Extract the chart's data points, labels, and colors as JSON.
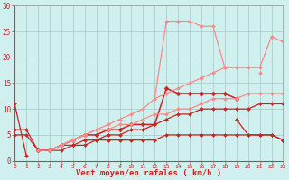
{
  "xlabel": "Vent moyen/en rafales ( km/h )",
  "background_color": "#cff0ee",
  "grid_color": "#aacfcc",
  "x": [
    0,
    1,
    2,
    3,
    4,
    5,
    6,
    7,
    8,
    9,
    10,
    11,
    12,
    13,
    14,
    15,
    16,
    17,
    18,
    19,
    20,
    21,
    22,
    23
  ],
  "ylim": [
    0,
    30
  ],
  "xlim": [
    0,
    23
  ],
  "series": [
    {
      "y": [
        11,
        1,
        null,
        null,
        null,
        null,
        null,
        null,
        null,
        null,
        null,
        null,
        null,
        null,
        null,
        null,
        null,
        null,
        null,
        null,
        null,
        null,
        null,
        null
      ],
      "color": "#cc2222",
      "lw": 0.9,
      "marker": "D",
      "ms": 2.0
    },
    {
      "y": [
        5,
        5,
        2,
        2,
        2,
        3,
        3,
        4,
        4,
        4,
        4,
        4,
        4,
        5,
        5,
        5,
        5,
        5,
        5,
        5,
        5,
        5,
        5,
        4
      ],
      "color": "#cc2222",
      "lw": 0.9,
      "marker": "D",
      "ms": 2.0
    },
    {
      "y": [
        6,
        6,
        2,
        2,
        3,
        3,
        4,
        4,
        5,
        5,
        6,
        6,
        7,
        8,
        9,
        9,
        10,
        10,
        10,
        10,
        10,
        11,
        11,
        11
      ],
      "color": "#cc2222",
      "lw": 0.9,
      "marker": "D",
      "ms": 2.0
    },
    {
      "y": [
        null,
        null,
        2,
        2,
        3,
        4,
        5,
        5,
        6,
        6,
        7,
        7,
        7,
        14,
        13,
        13,
        13,
        13,
        13,
        12,
        null,
        null,
        null,
        null
      ],
      "color": "#cc2222",
      "lw": 1.1,
      "marker": "D",
      "ms": 2.5
    },
    {
      "y": [
        null,
        null,
        null,
        null,
        null,
        null,
        null,
        null,
        null,
        null,
        null,
        null,
        null,
        null,
        null,
        null,
        null,
        null,
        null,
        8,
        5,
        5,
        5,
        4
      ],
      "color": "#cc2222",
      "lw": 0.9,
      "marker": "D",
      "ms": 2.0
    },
    {
      "y": [
        null,
        null,
        2,
        2,
        3,
        4,
        5,
        6,
        6,
        7,
        7,
        8,
        9,
        9,
        10,
        10,
        11,
        12,
        12,
        12,
        13,
        13,
        13,
        13
      ],
      "color": "#ff8888",
      "lw": 0.9,
      "marker": "D",
      "ms": 2.0
    },
    {
      "y": [
        null,
        null,
        null,
        null,
        null,
        null,
        null,
        null,
        null,
        null,
        null,
        null,
        12,
        27,
        27,
        27,
        26,
        26,
        18,
        null,
        null,
        null,
        null,
        null
      ],
      "color": "#ff8888",
      "lw": 0.9,
      "marker": "D",
      "ms": 2.0
    },
    {
      "y": [
        null,
        null,
        null,
        null,
        null,
        null,
        null,
        null,
        null,
        null,
        null,
        null,
        null,
        null,
        null,
        null,
        null,
        null,
        null,
        null,
        null,
        17,
        null,
        null
      ],
      "color": "#ff8888",
      "lw": 0.9,
      "marker": "D",
      "ms": 2.0
    },
    {
      "y": [
        null,
        null,
        null,
        2,
        3,
        4,
        5,
        6,
        7,
        8,
        9,
        10,
        12,
        13,
        14,
        15,
        16,
        17,
        18,
        18,
        18,
        18,
        24,
        23
      ],
      "color": "#ff8888",
      "lw": 0.9,
      "marker": "D",
      "ms": 2.0
    }
  ],
  "yticks": [
    0,
    5,
    10,
    15,
    20,
    25,
    30
  ],
  "xtick_labels": [
    "0",
    "1",
    "2",
    "3",
    "4",
    "5",
    "6",
    "7",
    "8",
    "9",
    "10",
    "11",
    "12",
    "13",
    "14",
    "15",
    "16",
    "17",
    "18",
    "19",
    "20",
    "21",
    "22",
    "23"
  ],
  "tick_color": "#cc2222",
  "tick_fontsize": 4.5,
  "xlabel_fontsize": 6.5,
  "xlabel_color": "#cc2222",
  "ytick_fontsize": 5.5
}
